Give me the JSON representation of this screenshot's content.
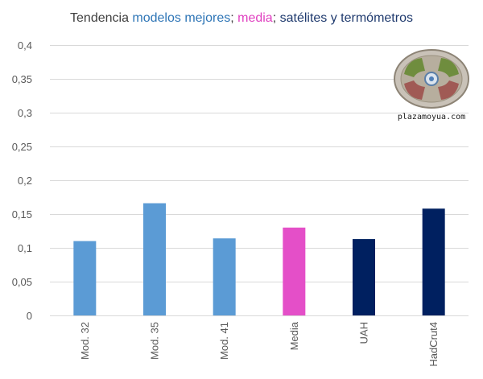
{
  "chart_data": {
    "type": "bar",
    "title_parts": [
      {
        "text": "Tendencia ",
        "color": "#404040"
      },
      {
        "text": "modelos mejores",
        "color": "#2e75b6"
      },
      {
        "text": "; ",
        "color": "#404040"
      },
      {
        "text": "media",
        "color": "#e040c0"
      },
      {
        "text": "; ",
        "color": "#404040"
      },
      {
        "text": "satélites y termómetros",
        "color": "#1f3a6e"
      }
    ],
    "categories": [
      "Mod. 32",
      "Mod. 35",
      "Mod. 41",
      "Media",
      "UAH",
      "HadCrut4"
    ],
    "values": [
      0.11,
      0.166,
      0.114,
      0.13,
      0.113,
      0.158
    ],
    "bar_colors": [
      "#5b9bd5",
      "#5b9bd5",
      "#5b9bd5",
      "#e44fc8",
      "#002060",
      "#002060"
    ],
    "ylim": [
      0,
      0.4
    ],
    "yticks": [
      0,
      0.05,
      0.1,
      0.15,
      0.2,
      0.25,
      0.3,
      0.35,
      0.4
    ],
    "ytick_labels": [
      "0",
      "0,05",
      "0,1",
      "0,15",
      "0,2",
      "0,25",
      "0,3",
      "0,35",
      "0,4"
    ],
    "xlabel": "",
    "ylabel": "",
    "grid": true
  },
  "watermark": {
    "text": "plazamoyua.com"
  }
}
